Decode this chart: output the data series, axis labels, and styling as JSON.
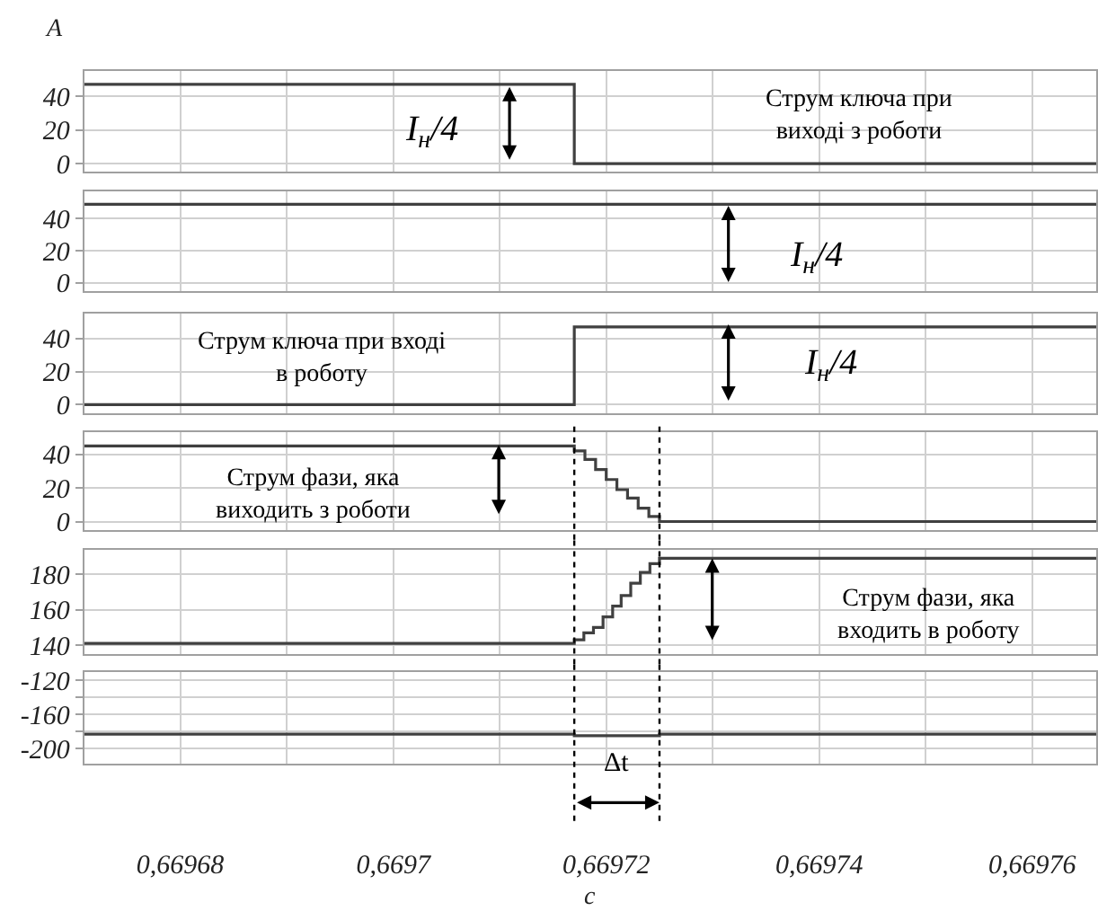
{
  "chart_data": [
    {
      "type": "step",
      "ylabel": "A",
      "x": [
        0.669671,
        0.669717,
        0.669766
      ],
      "series": [
        {
          "color": "#404040",
          "values": [
            47,
            0,
            0
          ]
        }
      ],
      "xlim": [
        0.669671,
        0.669766
      ],
      "xticks": [
        {
          "value": 0.66968,
          "label": null
        },
        {
          "value": 0.66969,
          "label": null
        },
        {
          "value": 0.6697,
          "label": null
        },
        {
          "value": 0.66971,
          "label": null
        },
        {
          "value": 0.66972,
          "label": null
        },
        {
          "value": 0.66973,
          "label": null
        },
        {
          "value": 0.66974,
          "label": null
        },
        {
          "value": 0.66975,
          "label": null
        },
        {
          "value": 0.66976,
          "label": null
        }
      ],
      "ylim": [
        -5,
        55
      ],
      "yticks": [
        0,
        20,
        40
      ],
      "grid": true,
      "tick_labels": "y",
      "annotations": [
        "Струм ключа при\nвиході з роботи",
        "I$_{н}$/4"
      ]
    },
    {
      "type": "step",
      "x": [
        0.669671,
        0.669766
      ],
      "series": [
        {
          "color": "#404040",
          "values": [
            49,
            49
          ]
        }
      ],
      "xlim": [
        0.669671,
        0.669766
      ],
      "xticks": [
        {
          "value": 0.66968,
          "label": null
        },
        {
          "value": 0.66969,
          "label": null
        },
        {
          "value": 0.6697,
          "label": null
        },
        {
          "value": 0.66971,
          "label": null
        },
        {
          "value": 0.66972,
          "label": null
        },
        {
          "value": 0.66973,
          "label": null
        },
        {
          "value": 0.66974,
          "label": null
        },
        {
          "value": 0.66975,
          "label": null
        },
        {
          "value": 0.66976,
          "label": null
        }
      ],
      "ylim": [
        -5,
        57
      ],
      "yticks": [
        0,
        20,
        40
      ],
      "grid": true,
      "tick_labels": "y",
      "annotations": [
        "I$_{н}$/4"
      ]
    },
    {
      "type": "step",
      "x": [
        0.669671,
        0.669717,
        0.669766
      ],
      "series": [
        {
          "color": "#404040",
          "values": [
            0,
            47,
            47
          ]
        }
      ],
      "xlim": [
        0.669671,
        0.669766
      ],
      "xticks": [
        {
          "value": 0.66968,
          "label": null
        },
        {
          "value": 0.66969,
          "label": null
        },
        {
          "value": 0.6697,
          "label": null
        },
        {
          "value": 0.66971,
          "label": null
        },
        {
          "value": 0.66972,
          "label": null
        },
        {
          "value": 0.66973,
          "label": null
        },
        {
          "value": 0.66974,
          "label": null
        },
        {
          "value": 0.66975,
          "label": null
        },
        {
          "value": 0.66976,
          "label": null
        }
      ],
      "ylim": [
        -5,
        55
      ],
      "yticks": [
        0,
        20,
        40
      ],
      "grid": true,
      "tick_labels": "y",
      "annotations": [
        "Струм ключа при вході\nв роботу",
        "I$_{н}$/4"
      ]
    },
    {
      "type": "step",
      "x": [
        0.669671,
        0.669717,
        0.669718,
        0.669719,
        0.66972,
        0.669721,
        0.669722,
        0.669723,
        0.669724,
        0.669725,
        0.669766
      ],
      "series": [
        {
          "color": "#404040",
          "values": [
            45,
            42,
            37,
            31,
            25,
            19,
            14,
            8,
            3,
            0,
            0
          ]
        }
      ],
      "xlim": [
        0.669671,
        0.669766
      ],
      "xticks": [
        {
          "value": 0.66968,
          "label": null
        },
        {
          "value": 0.66969,
          "label": null
        },
        {
          "value": 0.6697,
          "label": null
        },
        {
          "value": 0.66971,
          "label": null
        },
        {
          "value": 0.66972,
          "label": null
        },
        {
          "value": 0.66973,
          "label": null
        },
        {
          "value": 0.66974,
          "label": null
        },
        {
          "value": 0.66975,
          "label": null
        },
        {
          "value": 0.66976,
          "label": null
        }
      ],
      "ylim": [
        -5,
        53
      ],
      "yticks": [
        0,
        20,
        40
      ],
      "grid": true,
      "tick_labels": "y",
      "ref_lines": [
        {
          "axis": "x",
          "value": 0.669717,
          "color": "#000000",
          "line_style": "dotted"
        },
        {
          "axis": "x",
          "value": 0.669725,
          "color": "#000000",
          "line_style": "dotted"
        }
      ],
      "annotations": [
        "Струм фази, яка\nвиходить з роботи"
      ]
    },
    {
      "type": "step",
      "x": [
        0.669671,
        0.669717,
        0.6697179,
        0.6697188,
        0.6697197,
        0.6697206,
        0.6697214,
        0.6697223,
        0.6697232,
        0.6697241,
        0.669725,
        0.669766
      ],
      "series": [
        {
          "color": "#404040",
          "values": [
            141,
            143,
            147,
            150,
            156,
            162,
            168,
            175,
            181,
            186,
            189,
            189
          ]
        }
      ],
      "xlim": [
        0.669671,
        0.669766
      ],
      "xticks": [
        {
          "value": 0.66968,
          "label": null
        },
        {
          "value": 0.66969,
          "label": null
        },
        {
          "value": 0.6697,
          "label": null
        },
        {
          "value": 0.66971,
          "label": null
        },
        {
          "value": 0.66972,
          "label": null
        },
        {
          "value": 0.66973,
          "label": null
        },
        {
          "value": 0.66974,
          "label": null
        },
        {
          "value": 0.66975,
          "label": null
        },
        {
          "value": 0.66976,
          "label": null
        }
      ],
      "ylim": [
        135,
        194
      ],
      "yticks": [
        140,
        160,
        180
      ],
      "grid": true,
      "tick_labels": "y",
      "ref_lines": [
        {
          "axis": "x",
          "value": 0.669717,
          "color": "#000000",
          "line_style": "dotted"
        },
        {
          "axis": "x",
          "value": 0.669725,
          "color": "#000000",
          "line_style": "dotted"
        }
      ],
      "annotations": [
        "Струм фази, яка\nвходить в роботу"
      ]
    },
    {
      "type": "step",
      "xlabel": "c",
      "x": [
        0.669671,
        0.669717,
        0.669725,
        0.669766
      ],
      "series": [
        {
          "color": "#404040",
          "values": [
            -183,
            -185,
            -183,
            -183
          ]
        }
      ],
      "xlim": [
        0.669671,
        0.669766
      ],
      "xticks": [
        {
          "value": 0.66968,
          "label": "0,66968"
        },
        {
          "value": 0.66969,
          "label": null
        },
        {
          "value": 0.6697,
          "label": "0,6697"
        },
        {
          "value": 0.66971,
          "label": null
        },
        {
          "value": 0.66972,
          "label": "0,66972"
        },
        {
          "value": 0.66973,
          "label": null
        },
        {
          "value": 0.66974,
          "label": "0,66974"
        },
        {
          "value": 0.66975,
          "label": null
        },
        {
          "value": 0.66976,
          "label": "0,66976"
        }
      ],
      "ylim": [
        -218,
        -110
      ],
      "yticks": [
        -120,
        {
          "value": -140,
          "label": null
        },
        -160,
        {
          "value": -180,
          "label": null
        },
        -200
      ],
      "grid": true,
      "ref_lines": [
        {
          "axis": "x",
          "value": 0.669717,
          "color": "#000000",
          "line_style": "dotted"
        },
        {
          "axis": "x",
          "value": 0.669725,
          "color": "#000000",
          "line_style": "dotted"
        }
      ],
      "annotations": [
        "Δt"
      ]
    }
  ]
}
